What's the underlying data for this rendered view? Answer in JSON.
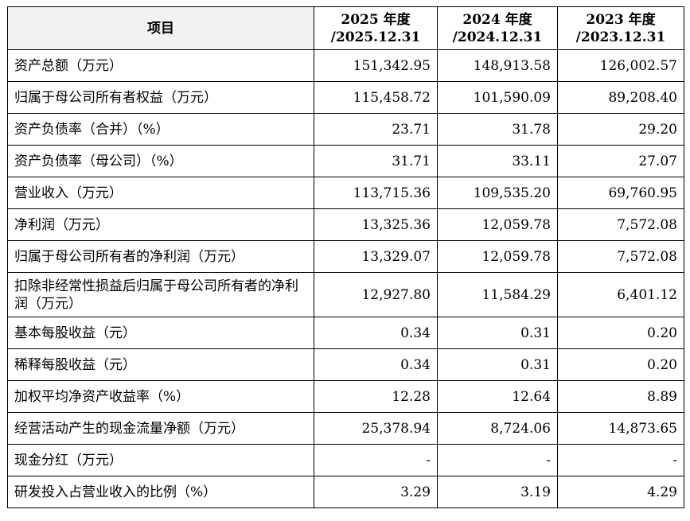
{
  "header": {
    "item": "项目",
    "col1_year": "2025 年度",
    "col1_date": "/2025.12.31",
    "col2_year": "2024 年度",
    "col2_date": "/2024.12.31",
    "col3_year": "2023 年度",
    "col3_date": "/2023.12.31"
  },
  "rows": [
    {
      "label": "资产总额（万元）",
      "v2025": "151,342.95",
      "v2024": "148,913.58",
      "v2023": "126,002.57"
    },
    {
      "label": "归属于母公司所有者权益（万元）",
      "v2025": "115,458.72",
      "v2024": "101,590.09",
      "v2023": "89,208.40"
    },
    {
      "label": "资产负债率（合并）（%）",
      "v2025": "23.71",
      "v2024": "31.78",
      "v2023": "29.20"
    },
    {
      "label": "资产负债率（母公司）（%）",
      "v2025": "31.71",
      "v2024": "33.11",
      "v2023": "27.07"
    },
    {
      "label": "营业收入（万元）",
      "v2025": "113,715.36",
      "v2024": "109,535.20",
      "v2023": "69,760.95"
    },
    {
      "label": "净利润（万元）",
      "v2025": "13,325.36",
      "v2024": "12,059.78",
      "v2023": "7,572.08"
    },
    {
      "label": "归属于母公司所有者的净利润（万元）",
      "v2025": "13,329.07",
      "v2024": "12,059.78",
      "v2023": "7,572.08"
    },
    {
      "label": "扣除非经常性损益后归属于母公司所有者的净利润（万元）",
      "v2025": "12,927.80",
      "v2024": "11,584.29",
      "v2023": "6,401.12"
    },
    {
      "label": "基本每股收益（元）",
      "v2025": "0.34",
      "v2024": "0.31",
      "v2023": "0.20"
    },
    {
      "label": "稀释每股收益（元）",
      "v2025": "0.34",
      "v2024": "0.31",
      "v2023": "0.20"
    },
    {
      "label": "加权平均净资产收益率（%）",
      "v2025": "12.28",
      "v2024": "12.64",
      "v2023": "8.89"
    },
    {
      "label": "经营活动产生的现金流量净额（万元）",
      "v2025": "25,378.94",
      "v2024": "8,724.06",
      "v2023": "14,873.65"
    },
    {
      "label": "现金分红（万元）",
      "v2025": "-",
      "v2024": "-",
      "v2023": "-"
    },
    {
      "label": "研发投入占营业收入的比例（%）",
      "v2025": "3.29",
      "v2024": "3.19",
      "v2023": "4.29"
    }
  ]
}
